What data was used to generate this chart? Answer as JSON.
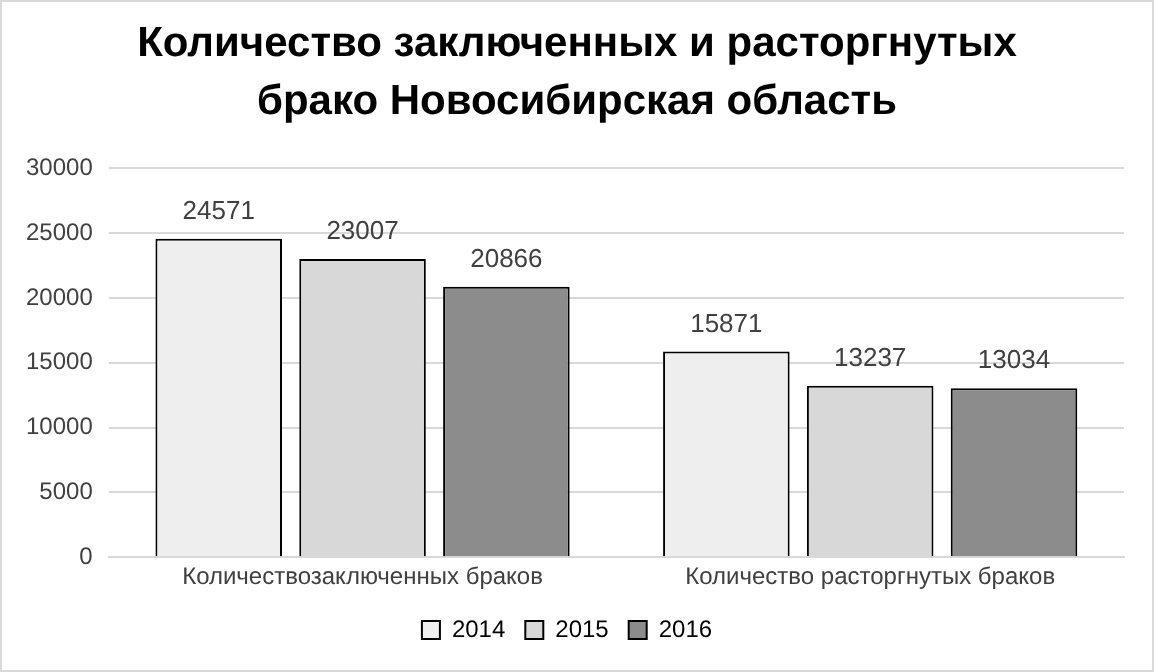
{
  "chart_data": {
    "type": "bar",
    "title": "Количество заключенных и расторгнутых брако Новосибирская область",
    "categories": [
      "Количествозаключенных браков",
      "Количество расторгнутых браков"
    ],
    "series": [
      {
        "name": "2014",
        "color": "#eeeeee",
        "values": [
          24571,
          15871
        ]
      },
      {
        "name": "2015",
        "color": "#d8d8d8",
        "values": [
          23007,
          13237
        ]
      },
      {
        "name": "2016",
        "color": "#8c8c8c",
        "values": [
          20866,
          13034
        ]
      }
    ],
    "ylim": [
      0,
      30000
    ],
    "yticks": [
      0,
      5000,
      10000,
      15000,
      20000,
      25000,
      30000
    ],
    "grid": "y",
    "legend": "bottom",
    "data_labels": true
  }
}
